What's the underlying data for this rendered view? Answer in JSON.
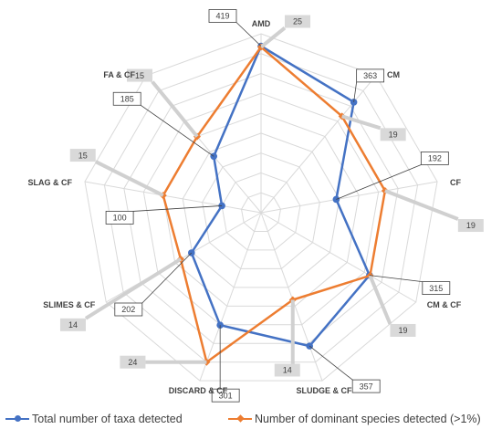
{
  "chart_data": {
    "type": "radar",
    "categories": [
      "AMD",
      "CM",
      "CF",
      "CM & CF",
      "SLUDGE & CF",
      "DISCARD & CF",
      "SLIMES & CF",
      "SLAG & CF",
      "FA & CF"
    ],
    "series": [
      {
        "name": "Total number of taxa detected",
        "color": "#4472c4",
        "marker": "circle",
        "values": [
          419,
          363,
          192,
          315,
          357,
          301,
          202,
          100,
          185
        ]
      },
      {
        "name": "Number of dominant species detected (>1%)",
        "color": "#ed7d31",
        "marker": "diamond",
        "values": [
          25,
          19,
          19,
          19,
          14,
          24,
          14,
          15,
          15
        ]
      }
    ],
    "series_scale_max": [
      450,
      27
    ],
    "grid_rings": 9,
    "grid": true,
    "legend_position": "bottom"
  }
}
